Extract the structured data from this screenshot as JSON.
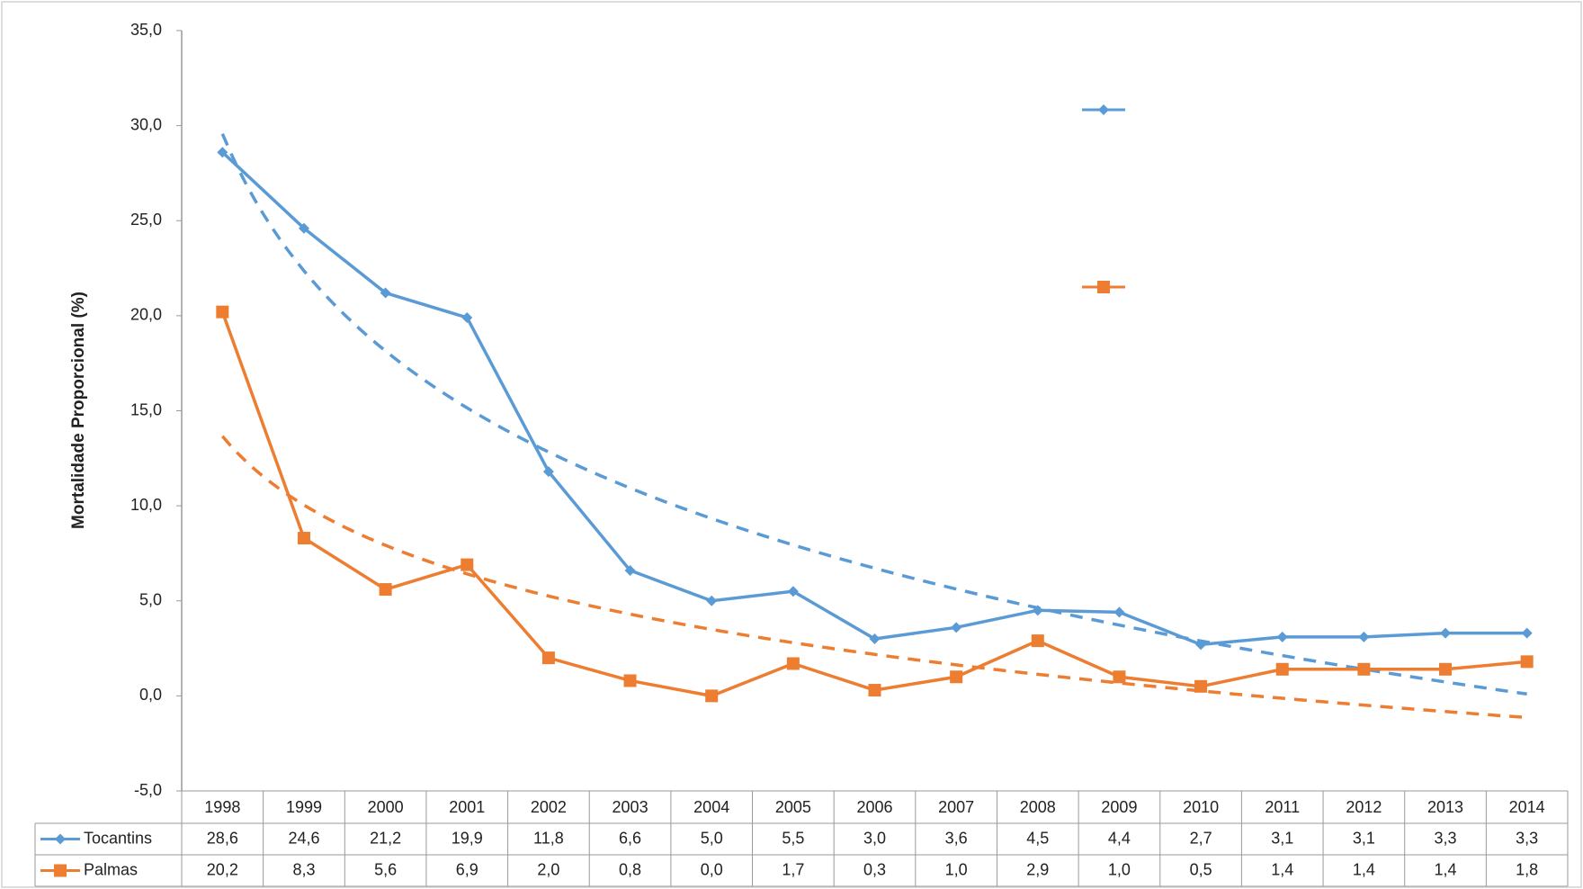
{
  "chart_data": {
    "type": "line",
    "y_label": "Mortalidade Proporcional (%)",
    "categories": [
      "1998",
      "1999",
      "2000",
      "2001",
      "2002",
      "2003",
      "2004",
      "2005",
      "2006",
      "2007",
      "2008",
      "2009",
      "2010",
      "2011",
      "2012",
      "2013",
      "2014"
    ],
    "series": [
      {
        "name": "Tocantins",
        "color": "#5b9bd5",
        "marker": "diamond",
        "values": [
          28.6,
          24.6,
          21.2,
          19.9,
          11.8,
          6.6,
          5.0,
          5.5,
          3.0,
          3.6,
          4.5,
          4.4,
          2.7,
          3.1,
          3.1,
          3.3,
          3.3
        ],
        "value_labels": [
          "28,6",
          "24,6",
          "21,2",
          "19,9",
          "11,8",
          "6,6",
          "5,0",
          "5,5",
          "3,0",
          "3,6",
          "4,5",
          "4,4",
          "2,7",
          "3,1",
          "3,1",
          "3,3",
          "3,3"
        ]
      },
      {
        "name": "Palmas",
        "color": "#ed7d31",
        "marker": "square",
        "values": [
          20.2,
          8.3,
          5.6,
          6.9,
          2.0,
          0.8,
          0.0,
          1.7,
          0.3,
          1.0,
          2.9,
          1.0,
          0.5,
          1.4,
          1.4,
          1.4,
          1.8
        ],
        "value_labels": [
          "20,2",
          "8,3",
          "5,6",
          "6,9",
          "2,0",
          "0,8",
          "0,0",
          "1,7",
          "0,3",
          "1,0",
          "2,9",
          "1,0",
          "0,5",
          "1,4",
          "1,4",
          "1,4",
          "1,8"
        ]
      }
    ],
    "ylim": [
      -5,
      35
    ],
    "yticks": [
      {
        "value": -5,
        "label": "-5,0"
      },
      {
        "value": 0,
        "label": "0,0"
      },
      {
        "value": 5,
        "label": "5,0"
      },
      {
        "value": 10,
        "label": "10,0"
      },
      {
        "value": 15,
        "label": "15,0"
      },
      {
        "value": 20,
        "label": "20,0"
      },
      {
        "value": 25,
        "label": "25,0"
      },
      {
        "value": 30,
        "label": "30,0"
      },
      {
        "value": 35,
        "label": "35,0"
      }
    ],
    "trendline": "logarithmic",
    "legend": "top-right",
    "grid": false
  }
}
